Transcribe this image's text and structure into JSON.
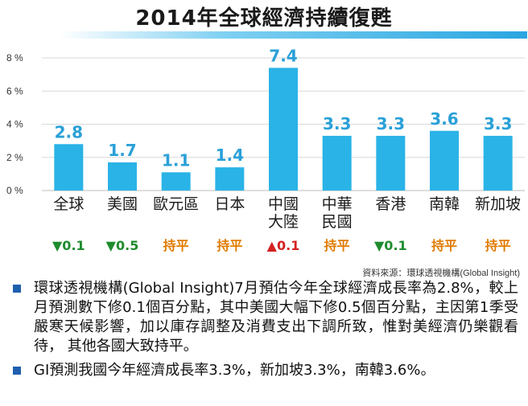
{
  "title": "2014年全球經濟持續復甦",
  "source": "資料來源：環球透視機構(Global Insight)",
  "colors": {
    "bar": "#2ab3e6",
    "value_label": "#2aa0d8",
    "category": "#1a1a1a",
    "down": "#1e8c2e",
    "up": "#d32222",
    "flat": "#e07b00",
    "bullet": "#1f5fae"
  },
  "chart_data": {
    "type": "bar",
    "categories": [
      [
        "全球"
      ],
      [
        "美國"
      ],
      [
        "歐元區"
      ],
      [
        "日本"
      ],
      [
        "中國",
        "大陸"
      ],
      [
        "中華",
        "民國"
      ],
      [
        "香港"
      ],
      [
        "南韓"
      ],
      [
        "新加坡"
      ]
    ],
    "values": [
      2.8,
      1.7,
      1.1,
      1.4,
      7.4,
      3.3,
      3.3,
      3.6,
      3.3
    ],
    "value_labels": [
      "2.8",
      "1.7",
      "1.1",
      "1.4",
      "7.4",
      "3.3",
      "3.3",
      "3.6",
      "3.3"
    ],
    "changes": [
      {
        "text": "▼0.1",
        "dir": "down"
      },
      {
        "text": "▼0.5",
        "dir": "down"
      },
      {
        "text": "持平",
        "dir": "flat"
      },
      {
        "text": "持平",
        "dir": "flat"
      },
      {
        "text": "▲0.1",
        "dir": "up"
      },
      {
        "text": "持平",
        "dir": "flat"
      },
      {
        "text": "▼0.1",
        "dir": "down"
      },
      {
        "text": "持平",
        "dir": "flat"
      },
      {
        "text": "持平",
        "dir": "flat"
      }
    ],
    "yticks": [
      "8 %",
      "6 %",
      "4 %",
      "2 %",
      "0 %"
    ],
    "ytick_values": [
      8,
      6,
      4,
      2,
      0
    ],
    "ylim": [
      0,
      8
    ],
    "grid": true
  },
  "notes": [
    "環球透視機構(Global Insight)7月預估今年全球經濟成長率為2.8%，較上月預測數下修0.1個百分點，其中美國大幅下修0.5個百分點，主因第1季受嚴寒天候影響，加以庫存調整及消費支出下調所致，惟對美經濟仍樂觀看待， 其他各國大致持平。",
    "GI預測我國今年經濟成長率3.3%，新加坡3.3%，南韓3.6%。"
  ]
}
